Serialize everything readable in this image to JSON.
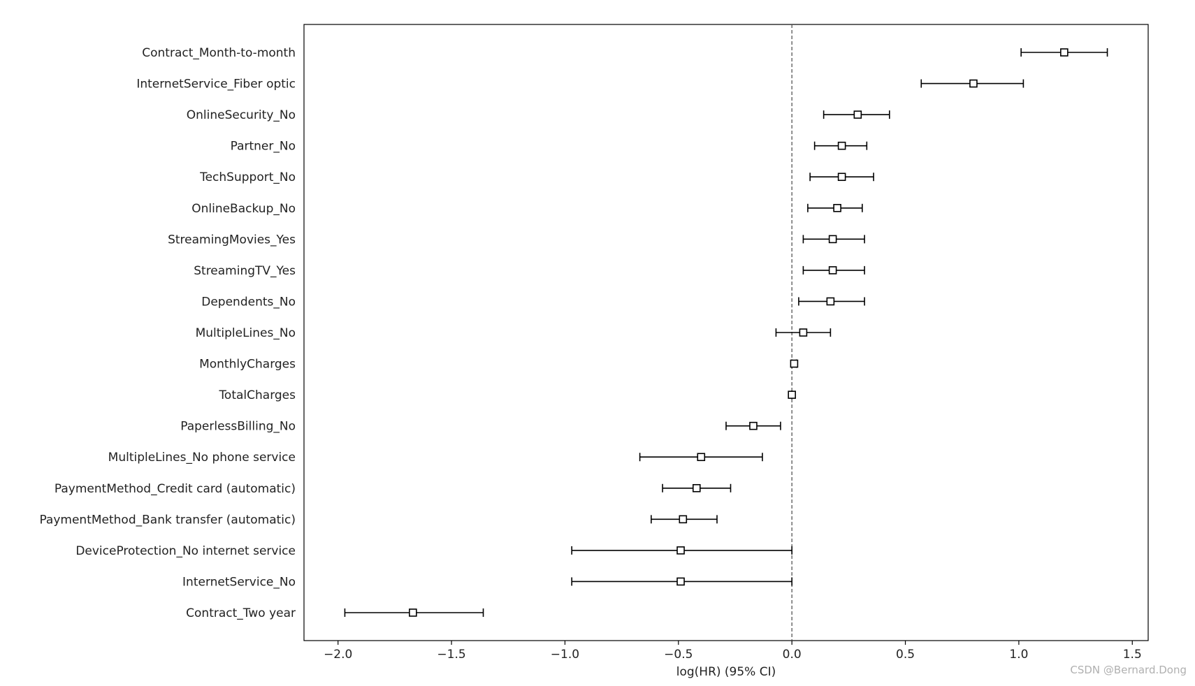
{
  "chart_data": {
    "type": "forest",
    "xlabel": "log(HR) (95% CI)",
    "xlim": [
      -2.15,
      1.57
    ],
    "xticks": [
      -2.0,
      -1.5,
      -1.0,
      -0.5,
      0.0,
      0.5,
      1.0,
      1.5
    ],
    "xtick_labels": [
      "−2.0",
      "−1.5",
      "−1.0",
      "−0.5",
      "0.0",
      "0.5",
      "1.0",
      "1.5"
    ],
    "reference_line": 0.0,
    "grid": false,
    "rows": [
      {
        "label": "Contract_Month-to-month",
        "coef": 1.2,
        "lower": 1.01,
        "upper": 1.39
      },
      {
        "label": "InternetService_Fiber optic",
        "coef": 0.8,
        "lower": 0.57,
        "upper": 1.02
      },
      {
        "label": "OnlineSecurity_No",
        "coef": 0.29,
        "lower": 0.14,
        "upper": 0.43
      },
      {
        "label": "Partner_No",
        "coef": 0.22,
        "lower": 0.1,
        "upper": 0.33
      },
      {
        "label": "TechSupport_No",
        "coef": 0.22,
        "lower": 0.08,
        "upper": 0.36
      },
      {
        "label": "OnlineBackup_No",
        "coef": 0.2,
        "lower": 0.07,
        "upper": 0.31
      },
      {
        "label": "StreamingMovies_Yes",
        "coef": 0.18,
        "lower": 0.05,
        "upper": 0.32
      },
      {
        "label": "StreamingTV_Yes",
        "coef": 0.18,
        "lower": 0.05,
        "upper": 0.32
      },
      {
        "label": "Dependents_No",
        "coef": 0.17,
        "lower": 0.03,
        "upper": 0.32
      },
      {
        "label": "MultipleLines_No",
        "coef": 0.05,
        "lower": -0.07,
        "upper": 0.17
      },
      {
        "label": "MonthlyCharges",
        "coef": 0.01,
        "lower": 0.0,
        "upper": 0.02
      },
      {
        "label": "TotalCharges",
        "coef": 0.0,
        "lower": 0.0,
        "upper": 0.0
      },
      {
        "label": "PaperlessBilling_No",
        "coef": -0.17,
        "lower": -0.29,
        "upper": -0.05
      },
      {
        "label": "MultipleLines_No phone service",
        "coef": -0.4,
        "lower": -0.67,
        "upper": -0.13
      },
      {
        "label": "PaymentMethod_Credit card (automatic)",
        "coef": -0.42,
        "lower": -0.57,
        "upper": -0.27
      },
      {
        "label": "PaymentMethod_Bank transfer (automatic)",
        "coef": -0.48,
        "lower": -0.62,
        "upper": -0.33
      },
      {
        "label": "DeviceProtection_No internet service",
        "coef": -0.49,
        "lower": -0.97,
        "upper": 0.0
      },
      {
        "label": "InternetService_No",
        "coef": -0.49,
        "lower": -0.97,
        "upper": 0.0
      },
      {
        "label": "Contract_Two year",
        "coef": -1.67,
        "lower": -1.97,
        "upper": -1.36
      }
    ],
    "colors": {
      "line": "#000000",
      "marker_fill": "#ffffff",
      "reference": "#555555"
    }
  },
  "watermark": "CSDN @Bernard.Dong"
}
